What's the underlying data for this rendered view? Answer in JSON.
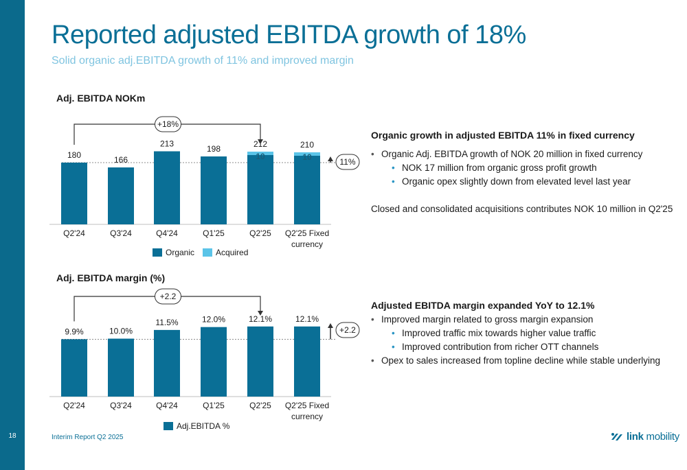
{
  "page": {
    "title": "Reported adjusted EBITDA growth of 18%",
    "subtitle": "Solid organic adj.EBITDA growth of 11% and improved margin",
    "page_number": "18",
    "footer": "Interim Report Q2 2025",
    "logo_text_bold": "link",
    "logo_text_light": " mobility"
  },
  "colors": {
    "organic": "#0a6f96",
    "acquired": "#5bc4e8",
    "sidebar": "#0b6a8c",
    "title": "#0a6f96",
    "subtitle": "#7fc4e0"
  },
  "chart_data": [
    {
      "type": "bar",
      "stacked": true,
      "title": "Adj. EBITDA NOKm",
      "categories": [
        "Q2'24",
        "Q3'24",
        "Q4'24",
        "Q1'25",
        "Q2'25",
        "Q2'25 Fixed currency"
      ],
      "series": [
        {
          "name": "Organic",
          "values": [
            180,
            166,
            213,
            198,
            202,
            200
          ]
        },
        {
          "name": "Acquired",
          "values": [
            0,
            0,
            0,
            0,
            10,
            10
          ]
        }
      ],
      "total_labels": [
        "180",
        "166",
        "213",
        "198",
        "212",
        "210"
      ],
      "acquired_labels": [
        "",
        "",
        "",
        "",
        "10",
        "10"
      ],
      "ylim": [
        0,
        240
      ],
      "reference_line": 180,
      "annotations": {
        "growth_label": "+18%",
        "growth_from": "Q2'24",
        "growth_to": "Q2'25",
        "delta_label": "11%"
      },
      "legend": [
        "Organic",
        "Acquired"
      ],
      "legend_position": "bottom",
      "grid": false
    },
    {
      "type": "bar",
      "title": "Adj. EBITDA margin (%)",
      "categories": [
        "Q2'24",
        "Q3'24",
        "Q4'24",
        "Q1'25",
        "Q2'25",
        "Q2'25 Fixed currency"
      ],
      "series": [
        {
          "name": "Adj.EBITDA %",
          "values": [
            9.9,
            10.0,
            11.5,
            12.0,
            12.1,
            12.1
          ]
        }
      ],
      "value_labels": [
        "9.9%",
        "10.0%",
        "11.5%",
        "12.0%",
        "12.1%",
        "12.1%"
      ],
      "ylim": [
        0,
        13.5
      ],
      "reference_line": 9.9,
      "annotations": {
        "growth_label": "+2.2",
        "growth_from": "Q2'24",
        "growth_to": "Q2'25",
        "delta_label": "+2.2"
      },
      "legend": [
        "Adj.EBITDA %"
      ],
      "legend_position": "bottom",
      "grid": false
    }
  ],
  "growth_section": {
    "heading": "Organic growth in adjusted EBITDA 11% in fixed currency",
    "bullet": "Organic Adj. EBITDA growth of NOK 20 million in fixed currency",
    "sub_bullets": [
      "NOK 17 million from organic gross profit growth",
      "Organic opex slightly down from elevated level last year"
    ],
    "paragraph": "Closed and consolidated acquisitions contributes NOK 10 million in Q2'25"
  },
  "margin_section": {
    "heading": "Adjusted EBITDA margin expanded YoY to 12.1%",
    "bullet1": "Improved margin related to gross margin expansion",
    "sub_bullets": [
      "Improved traffic mix towards higher value traffic",
      "Improved contribution from richer OTT channels"
    ],
    "bullet2": "Opex to sales increased from topline decline while stable underlying"
  }
}
